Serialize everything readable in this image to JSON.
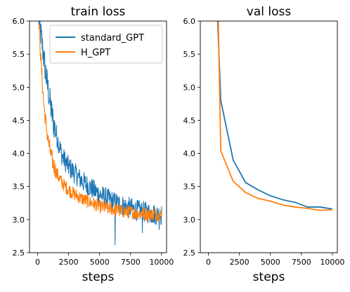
{
  "chart_data": [
    {
      "type": "line",
      "title": "train loss",
      "xlabel": "steps",
      "ylabel": "",
      "xlim": [
        -650,
        10400
      ],
      "ylim": [
        2.5,
        6.0
      ],
      "xticks": [
        0,
        2500,
        5000,
        7500,
        10000
      ],
      "yticks": [
        2.5,
        3.0,
        3.5,
        4.0,
        4.5,
        5.0,
        5.5,
        6.0
      ],
      "legend_position": "top-right",
      "noisy": true,
      "series": [
        {
          "name": "standard_GPT",
          "color": "#1f77b4",
          "x": [
            100,
            300,
            500,
            700,
            900,
            1100,
            1300,
            1500,
            1700,
            2000,
            2500,
            3000,
            3500,
            4000,
            4500,
            5000,
            5500,
            6000,
            6500,
            7000,
            7500,
            8000,
            8500,
            9000,
            9500,
            10000
          ],
          "y": [
            6.0,
            5.75,
            5.45,
            5.15,
            4.9,
            4.65,
            4.45,
            4.3,
            4.15,
            3.95,
            3.8,
            3.7,
            3.6,
            3.52,
            3.45,
            3.38,
            3.33,
            3.28,
            3.24,
            3.2,
            3.17,
            3.14,
            3.12,
            3.1,
            3.08,
            3.07
          ],
          "noise": 0.16,
          "spikes": [
            [
              6250,
              2.62
            ],
            [
              8450,
              2.8
            ],
            [
              9800,
              2.85
            ]
          ]
        },
        {
          "name": "H_GPT",
          "color": "#ff7f0e",
          "x": [
            100,
            300,
            500,
            700,
            900,
            1100,
            1300,
            1500,
            1700,
            2000,
            2500,
            3000,
            3500,
            4000,
            4500,
            5000,
            5500,
            6000,
            6500,
            7000,
            7500,
            8000,
            8500,
            9000,
            9500,
            10000
          ],
          "y": [
            6.0,
            5.3,
            4.75,
            4.4,
            4.15,
            3.95,
            3.82,
            3.72,
            3.64,
            3.55,
            3.45,
            3.38,
            3.32,
            3.28,
            3.24,
            3.2,
            3.18,
            3.16,
            3.14,
            3.12,
            3.11,
            3.1,
            3.09,
            3.08,
            3.08,
            3.07
          ],
          "noise": 0.1,
          "spikes": []
        }
      ]
    },
    {
      "type": "line",
      "title": "val loss",
      "xlabel": "steps",
      "ylabel": "",
      "xlim": [
        -650,
        10400
      ],
      "ylim": [
        2.5,
        6.0
      ],
      "xticks": [
        0,
        2500,
        5000,
        7500,
        10000
      ],
      "yticks": [
        2.5,
        3.0,
        3.5,
        4.0,
        4.5,
        5.0,
        5.5,
        6.0
      ],
      "noisy": false,
      "series": [
        {
          "name": "standard_GPT",
          "color": "#1f77b4",
          "x": [
            750,
            1000,
            2000,
            3000,
            4000,
            5000,
            6000,
            7000,
            8000,
            9000,
            10000
          ],
          "y": [
            6.0,
            4.8,
            3.9,
            3.56,
            3.45,
            3.36,
            3.3,
            3.26,
            3.19,
            3.19,
            3.16
          ]
        },
        {
          "name": "H_GPT",
          "color": "#ff7f0e",
          "x": [
            800,
            1000,
            2000,
            3000,
            4000,
            5000,
            6000,
            7000,
            8000,
            9000,
            10000
          ],
          "y": [
            6.0,
            4.04,
            3.58,
            3.41,
            3.32,
            3.28,
            3.22,
            3.19,
            3.17,
            3.14,
            3.15
          ]
        }
      ]
    }
  ]
}
